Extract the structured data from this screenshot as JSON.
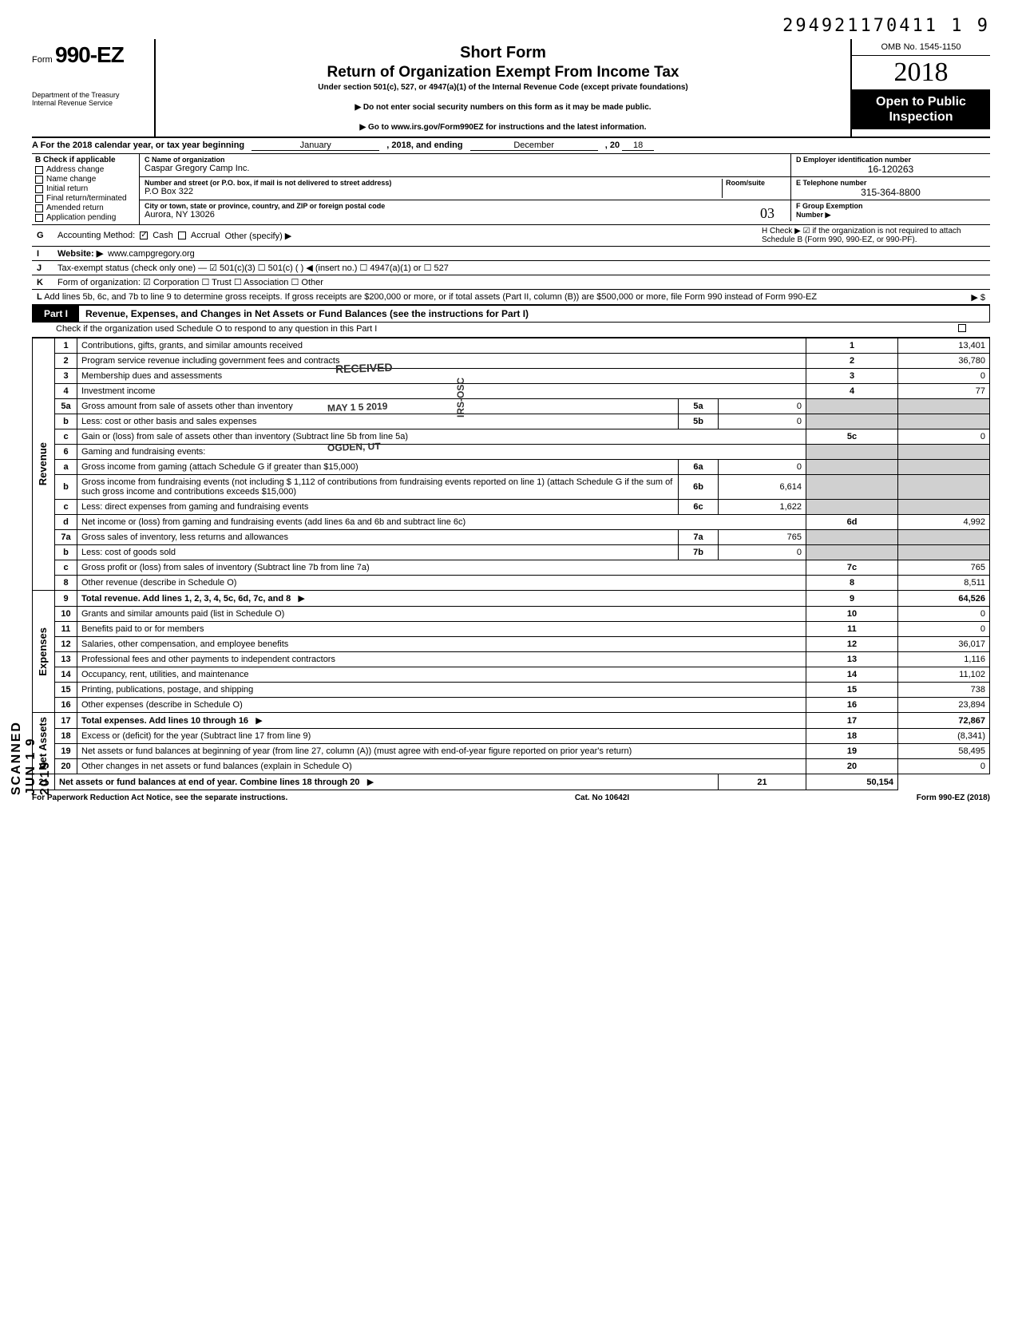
{
  "top_tracking": "294921170411 1   9",
  "header": {
    "form_prefix": "Form",
    "form_number": "990-EZ",
    "dept1": "Department of the Treasury",
    "dept2": "Internal Revenue Service",
    "short_form": "Short Form",
    "return_title": "Return of Organization Exempt From Income Tax",
    "under_section": "Under section 501(c), 527, or 4947(a)(1) of the Internal Revenue Code (except private foundations)",
    "note1": "▶ Do not enter social security numbers on this form as it may be made public.",
    "note2": "▶ Go to www.irs.gov/Form990EZ for instructions and the latest information.",
    "omn": "OMB No. 1545-1150",
    "year_display": "2018",
    "open1": "Open to Public",
    "open2": "Inspection"
  },
  "lineA": {
    "prefix": "A  For the 2018 calendar year, or tax year beginning",
    "month1": "January",
    "mid": ", 2018, and ending",
    "month2": "December",
    "tail": ", 20",
    "yr": "18"
  },
  "colB": {
    "label": "B  Check if applicable",
    "items": [
      "Address change",
      "Name change",
      "Initial return",
      "Final return/terminated",
      "Amended return",
      "Application pending"
    ]
  },
  "boxC": {
    "hdr": "C  Name of organization",
    "name": "Caspar Gregory Camp Inc.",
    "addr_hdr": "Number and street (or P.O. box, if mail is not delivered to street address)",
    "room_hdr": "Room/suite",
    "addr": "P.O Box 322",
    "city_hdr": "City or town, state or province, country, and ZIP or foreign postal code",
    "city": "Aurora, NY 13026",
    "city_hand": "03"
  },
  "boxD": {
    "hdr": "D Employer identification number",
    "val": "16-120263"
  },
  "boxE": {
    "hdr": "E Telephone number",
    "val": "315-364-8800"
  },
  "boxF": {
    "hdr": "F Group Exemption",
    "hdr2": "Number ▶",
    "val": ""
  },
  "rowG": {
    "lbl": "G",
    "text": "Accounting Method:",
    "opt1": "Cash",
    "opt2": "Accrual",
    "opt3": "Other (specify) ▶"
  },
  "rowH": {
    "text": "H Check ▶ ☑ if the organization is not required to attach Schedule B (Form 990, 990-EZ, or 990-PF)."
  },
  "rowI": {
    "lbl": "I",
    "text": "Website: ▶",
    "val": "www.campgregory.org"
  },
  "rowJ": {
    "lbl": "J",
    "text": "Tax-exempt status (check only one) — ☑ 501(c)(3)   ☐ 501(c) (      ) ◀ (insert no.)  ☐ 4947(a)(1) or   ☐ 527"
  },
  "rowK": {
    "lbl": "K",
    "text": "Form of organization:   ☑ Corporation    ☐ Trust    ☐ Association    ☐ Other"
  },
  "rowL": {
    "lbl": "L",
    "text": "Add lines 5b, 6c, and 7b to line 9 to determine gross receipts. If gross receipts are $200,000 or more, or if total assets (Part II, column (B)) are $500,000 or more, file Form 990 instead of Form 990-EZ",
    "arrow": "▶  $"
  },
  "part1": {
    "tag": "Part I",
    "title": "Revenue, Expenses, and Changes in Net Assets or Fund Balances (see the instructions for Part I)",
    "note": "Check if the organization used Schedule O to respond to any question in this Part I"
  },
  "sections": {
    "revenue": "Revenue",
    "expenses": "Expenses",
    "netassets": "Net Assets"
  },
  "stamps": {
    "received": "RECEIVED",
    "date": "MAY 1 5 2019",
    "ogden": "OGDEN, UT",
    "irs_osc": "IRS-OSC",
    "scanned": "SCANNED JUN 1 9 2019"
  },
  "rows": [
    {
      "n": "1",
      "desc": "Contributions, gifts, grants, and similar amounts received",
      "box": "1",
      "amt": "13,401"
    },
    {
      "n": "2",
      "desc": "Program service revenue including government fees and contracts",
      "box": "2",
      "amt": "36,780"
    },
    {
      "n": "3",
      "desc": "Membership dues and assessments",
      "box": "3",
      "amt": "0"
    },
    {
      "n": "4",
      "desc": "Investment income",
      "box": "4",
      "amt": "77"
    },
    {
      "n": "5a",
      "desc": "Gross amount from sale of assets other than inventory",
      "ibox": "5a",
      "iamt": "0"
    },
    {
      "n": "b",
      "desc": "Less: cost or other basis and sales expenses",
      "ibox": "5b",
      "iamt": "0"
    },
    {
      "n": "c",
      "desc": "Gain or (loss) from sale of assets other than inventory (Subtract line 5b from line 5a)",
      "box": "5c",
      "amt": "0"
    },
    {
      "n": "6",
      "desc": "Gaming and fundraising events:"
    },
    {
      "n": "a",
      "desc": "Gross income from gaming (attach Schedule G if greater than $15,000)",
      "ibox": "6a",
      "iamt": "0"
    },
    {
      "n": "b",
      "desc": "Gross income from fundraising events (not including  $             1,112 of contributions from fundraising events reported on line 1) (attach Schedule G if the sum of such gross income and contributions exceeds $15,000)",
      "ibox": "6b",
      "iamt": "6,614"
    },
    {
      "n": "c",
      "desc": "Less: direct expenses from gaming and fundraising events",
      "ibox": "6c",
      "iamt": "1,622"
    },
    {
      "n": "d",
      "desc": "Net income or (loss) from gaming and fundraising events (add lines 6a and 6b and subtract line 6c)",
      "box": "6d",
      "amt": "4,992"
    },
    {
      "n": "7a",
      "desc": "Gross sales of inventory, less returns and allowances",
      "ibox": "7a",
      "iamt": "765"
    },
    {
      "n": "b",
      "desc": "Less: cost of goods sold",
      "ibox": "7b",
      "iamt": "0"
    },
    {
      "n": "c",
      "desc": "Gross profit or (loss) from sales of inventory (Subtract line 7b from line 7a)",
      "box": "7c",
      "amt": "765"
    },
    {
      "n": "8",
      "desc": "Other revenue (describe in Schedule O)",
      "box": "8",
      "amt": "8,511"
    },
    {
      "n": "9",
      "desc": "Total revenue. Add lines 1, 2, 3, 4, 5c, 6d, 7c, and 8",
      "box": "9",
      "amt": "64,526",
      "bold": true,
      "arrow": true
    },
    {
      "n": "10",
      "desc": "Grants and similar amounts paid (list in Schedule O)",
      "box": "10",
      "amt": "0"
    },
    {
      "n": "11",
      "desc": "Benefits paid to or for members",
      "box": "11",
      "amt": "0"
    },
    {
      "n": "12",
      "desc": "Salaries, other compensation, and employee benefits",
      "box": "12",
      "amt": "36,017"
    },
    {
      "n": "13",
      "desc": "Professional fees and other payments to independent contractors",
      "box": "13",
      "amt": "1,116"
    },
    {
      "n": "14",
      "desc": "Occupancy, rent, utilities, and maintenance",
      "box": "14",
      "amt": "11,102"
    },
    {
      "n": "15",
      "desc": "Printing, publications, postage, and shipping",
      "box": "15",
      "amt": "738"
    },
    {
      "n": "16",
      "desc": "Other expenses (describe in Schedule O)",
      "box": "16",
      "amt": "23,894"
    },
    {
      "n": "17",
      "desc": "Total expenses. Add lines 10 through 16",
      "box": "17",
      "amt": "72,867",
      "bold": true,
      "arrow": true
    },
    {
      "n": "18",
      "desc": "Excess or (deficit) for the year (Subtract line 17 from line 9)",
      "box": "18",
      "amt": "(8,341)"
    },
    {
      "n": "19",
      "desc": "Net assets or fund balances at beginning of year (from line 27, column (A)) (must agree with end-of-year figure reported on prior year's return)",
      "box": "19",
      "amt": "58,495"
    },
    {
      "n": "20",
      "desc": "Other changes in net assets or fund balances (explain in Schedule O)",
      "box": "20",
      "amt": "0"
    },
    {
      "n": "21",
      "desc": "Net assets or fund balances at end of year. Combine lines 18 through 20",
      "box": "21",
      "amt": "50,154",
      "bold": true,
      "arrow": true
    }
  ],
  "footer": {
    "left": "For Paperwork Reduction Act Notice, see the separate instructions.",
    "mid": "Cat. No  10642I",
    "right": "Form 990-EZ (2018)"
  },
  "colors": {
    "black": "#000000",
    "white": "#ffffff",
    "grey": "#d0d0d0"
  }
}
